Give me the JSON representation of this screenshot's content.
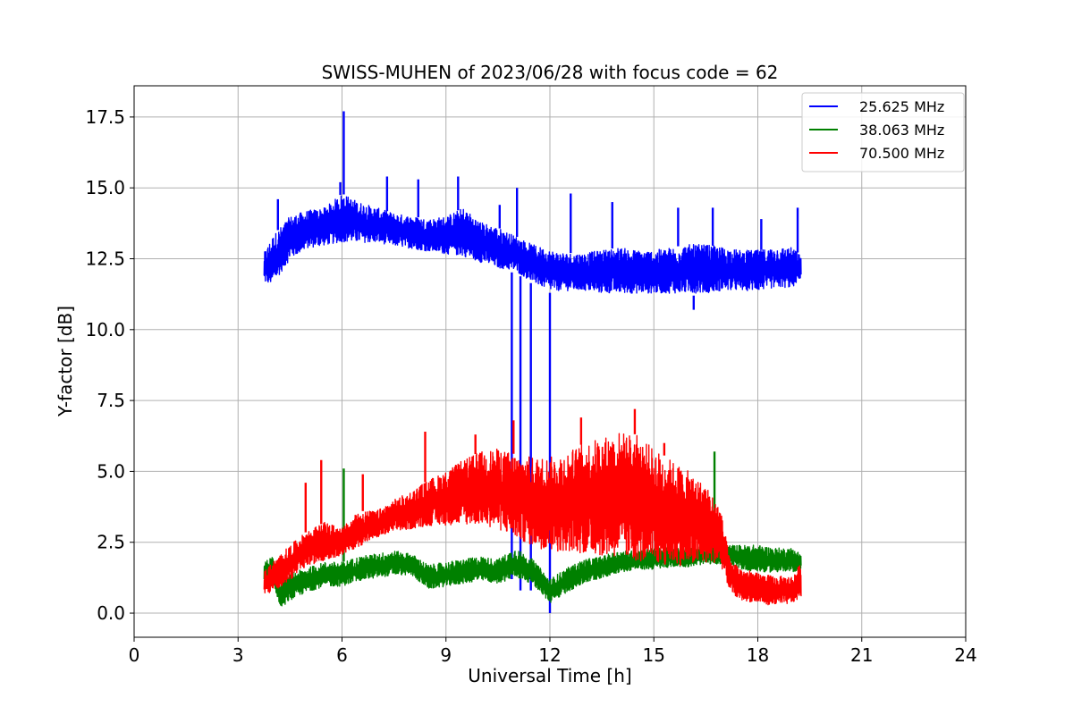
{
  "chart_data": {
    "type": "line",
    "title": "SWISS-MUHEN of 2023/06/28 with focus code = 62",
    "xlabel": "Universal Time [h]",
    "ylabel": "Y-factor [dB]",
    "xlim": [
      0,
      24
    ],
    "ylim": [
      -0.85,
      18.6
    ],
    "xticks": [
      0,
      3,
      6,
      9,
      12,
      15,
      18,
      21,
      24
    ],
    "yticks": [
      0.0,
      2.5,
      5.0,
      7.5,
      10.0,
      12.5,
      15.0,
      17.5
    ],
    "ytick_labels": [
      "0.0",
      "2.5",
      "5.0",
      "7.5",
      "10.0",
      "12.5",
      "15.0",
      "17.5"
    ],
    "grid": true,
    "legend_position": "top-right",
    "series": [
      {
        "name": "25.625 MHz",
        "color": "#0000ff",
        "envelope": {
          "x": [
            3.75,
            4.0,
            4.5,
            5.0,
            5.5,
            6.0,
            6.5,
            7.0,
            7.5,
            8.0,
            8.5,
            9.0,
            9.5,
            10.0,
            10.5,
            11.0,
            11.5,
            12.0,
            12.5,
            13.0,
            13.5,
            14.0,
            14.5,
            15.0,
            15.5,
            16.0,
            16.5,
            17.0,
            17.5,
            18.0,
            18.5,
            19.0,
            19.25
          ],
          "low": [
            11.6,
            11.5,
            12.4,
            12.8,
            12.9,
            13.0,
            13.0,
            13.0,
            12.9,
            12.8,
            12.7,
            12.6,
            12.5,
            12.3,
            12.1,
            12.0,
            11.6,
            11.3,
            11.3,
            11.3,
            11.2,
            11.2,
            11.2,
            11.2,
            11.2,
            11.2,
            11.2,
            11.3,
            11.3,
            11.3,
            11.4,
            11.4,
            11.8
          ],
          "high": [
            12.7,
            13.3,
            14.0,
            14.2,
            14.3,
            14.8,
            14.5,
            14.3,
            14.1,
            14.0,
            13.9,
            14.0,
            14.3,
            13.8,
            13.6,
            13.3,
            13.0,
            12.8,
            12.7,
            12.7,
            12.8,
            12.9,
            12.8,
            12.8,
            12.9,
            13.0,
            13.0,
            12.9,
            12.8,
            12.8,
            12.9,
            12.9,
            12.6
          ]
        },
        "spikes": [
          {
            "x": 4.15,
            "y": 14.6
          },
          {
            "x": 6.05,
            "y": 17.7
          },
          {
            "x": 5.95,
            "y": 15.2
          },
          {
            "x": 7.3,
            "y": 15.4
          },
          {
            "x": 8.2,
            "y": 15.3
          },
          {
            "x": 9.35,
            "y": 15.4
          },
          {
            "x": 10.55,
            "y": 14.4
          },
          {
            "x": 11.05,
            "y": 15.0
          },
          {
            "x": 12.6,
            "y": 14.8
          },
          {
            "x": 13.8,
            "y": 14.5
          },
          {
            "x": 15.7,
            "y": 14.3
          },
          {
            "x": 16.7,
            "y": 14.3
          },
          {
            "x": 18.1,
            "y": 13.9
          },
          {
            "x": 19.15,
            "y": 14.3
          }
        ],
        "dips": [
          {
            "x": 10.9,
            "y": 1.2
          },
          {
            "x": 11.15,
            "y": 0.8
          },
          {
            "x": 11.45,
            "y": 0.8
          },
          {
            "x": 12.0,
            "y": 0.0
          },
          {
            "x": 16.15,
            "y": 10.7
          }
        ]
      },
      {
        "name": "38.063 MHz",
        "color": "#008000",
        "envelope": {
          "x": [
            3.75,
            4.0,
            4.2,
            4.5,
            5.0,
            5.5,
            6.0,
            6.5,
            7.0,
            7.5,
            8.0,
            8.5,
            9.0,
            9.5,
            10.0,
            10.5,
            11.0,
            11.5,
            12.0,
            12.5,
            13.0,
            13.5,
            14.0,
            14.5,
            15.0,
            15.5,
            16.0,
            16.5,
            17.0,
            17.5,
            18.0,
            18.5,
            19.0,
            19.25
          ],
          "low": [
            1.1,
            1.2,
            0.1,
            0.4,
            0.7,
            0.9,
            0.9,
            1.1,
            1.2,
            1.3,
            1.3,
            0.8,
            0.9,
            1.0,
            1.1,
            1.0,
            1.2,
            1.0,
            0.3,
            0.7,
            1.0,
            1.2,
            1.4,
            1.5,
            1.5,
            1.6,
            1.6,
            1.7,
            1.7,
            1.5,
            1.4,
            1.4,
            1.4,
            1.5
          ],
          "high": [
            1.8,
            2.0,
            1.2,
            1.4,
            1.6,
            1.8,
            1.8,
            2.0,
            2.1,
            2.2,
            2.1,
            1.7,
            1.8,
            1.9,
            2.0,
            1.9,
            2.3,
            1.9,
            1.2,
            1.6,
            1.9,
            2.0,
            2.2,
            2.2,
            2.3,
            2.3,
            2.3,
            2.4,
            2.4,
            2.4,
            2.4,
            2.3,
            2.3,
            2.1
          ]
        },
        "spikes": [
          {
            "x": 6.05,
            "y": 5.1
          },
          {
            "x": 16.75,
            "y": 5.7
          }
        ],
        "dips": []
      },
      {
        "name": "70.500 MHz",
        "color": "#ff0000",
        "envelope": {
          "x": [
            3.75,
            4.0,
            4.5,
            5.0,
            5.5,
            6.0,
            6.5,
            7.0,
            7.5,
            8.0,
            8.5,
            9.0,
            9.5,
            10.0,
            10.5,
            11.0,
            11.5,
            12.0,
            12.5,
            13.0,
            13.5,
            14.0,
            14.5,
            15.0,
            15.5,
            16.0,
            16.5,
            16.9,
            17.2,
            17.5,
            18.0,
            18.5,
            19.0,
            19.25
          ],
          "low": [
            0.6,
            0.7,
            1.1,
            1.6,
            1.8,
            2.0,
            2.3,
            2.6,
            2.8,
            2.9,
            3.0,
            3.0,
            3.0,
            3.0,
            2.8,
            2.5,
            2.2,
            2.0,
            2.0,
            1.9,
            1.8,
            1.7,
            1.6,
            1.5,
            1.5,
            1.5,
            1.6,
            1.7,
            0.7,
            0.4,
            0.3,
            0.2,
            0.3,
            0.5
          ],
          "high": [
            1.5,
            1.8,
            2.4,
            2.9,
            3.2,
            3.0,
            3.6,
            3.6,
            4.0,
            4.3,
            4.7,
            5.0,
            5.4,
            5.7,
            5.8,
            5.6,
            5.5,
            5.5,
            5.7,
            6.0,
            6.2,
            6.4,
            6.3,
            5.8,
            5.4,
            5.0,
            4.5,
            3.8,
            1.9,
            1.6,
            1.4,
            1.3,
            1.3,
            1.8
          ]
        },
        "spikes": [
          {
            "x": 4.95,
            "y": 4.6
          },
          {
            "x": 5.4,
            "y": 5.4
          },
          {
            "x": 6.6,
            "y": 4.9
          },
          {
            "x": 8.4,
            "y": 6.4
          },
          {
            "x": 9.85,
            "y": 6.3
          },
          {
            "x": 10.95,
            "y": 6.8
          },
          {
            "x": 12.9,
            "y": 6.9
          },
          {
            "x": 14.45,
            "y": 7.2
          },
          {
            "x": 15.3,
            "y": 6.0
          }
        ],
        "dips": []
      }
    ]
  }
}
